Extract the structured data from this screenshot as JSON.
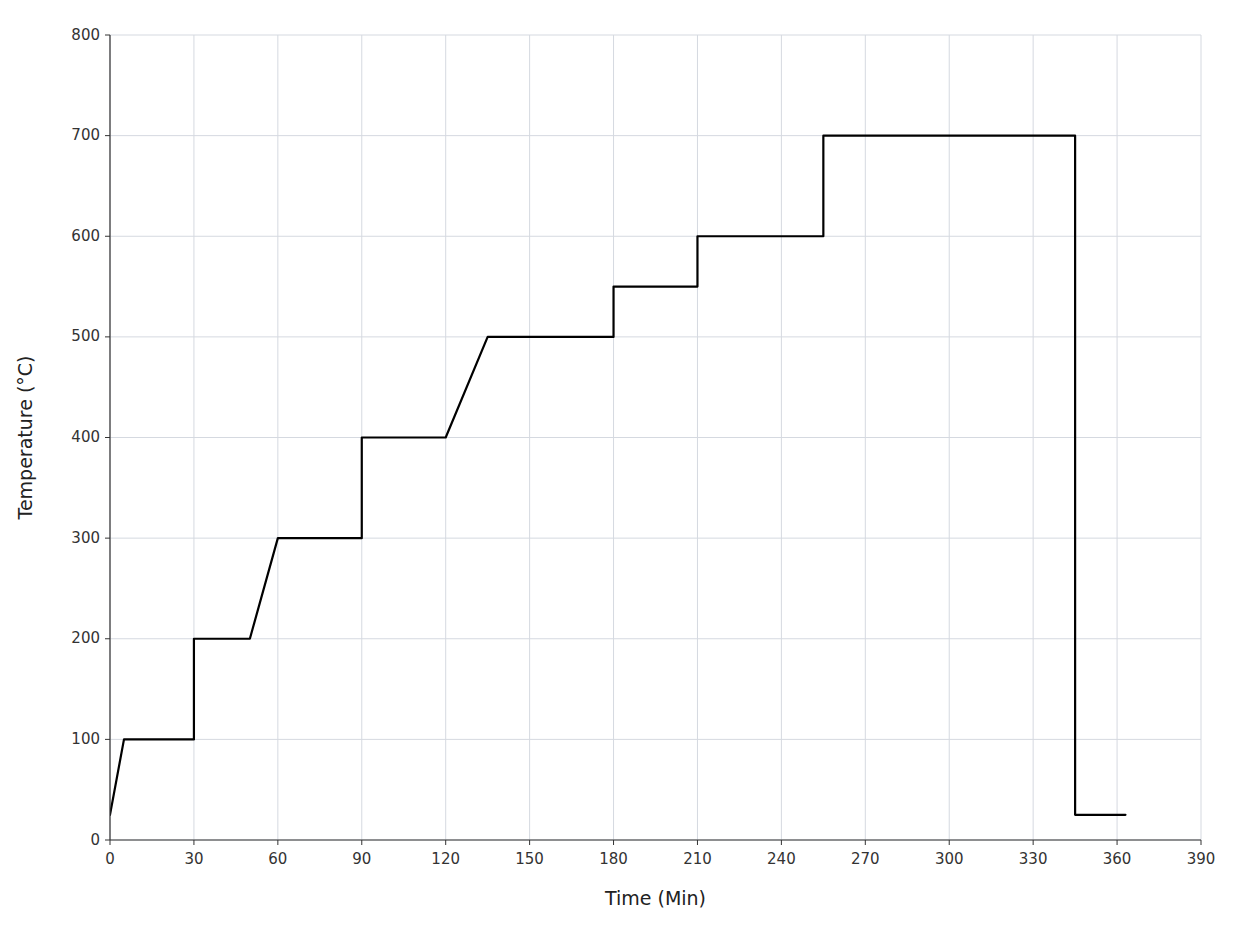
{
  "chart_data": {
    "type": "line",
    "xlabel": "Time (Min)",
    "ylabel": "Temperature (°C)",
    "x": [
      0,
      5,
      5,
      30,
      30,
      50,
      50,
      60,
      60,
      75,
      75,
      90,
      90,
      120,
      120,
      135,
      135,
      150,
      150,
      180,
      180,
      195,
      195,
      210,
      210,
      240,
      240,
      255,
      255,
      270,
      270,
      300,
      300,
      315,
      315,
      345,
      345,
      350,
      350,
      363
    ],
    "values": [
      25,
      100,
      100,
      100,
      200,
      200,
      200,
      300,
      300,
      300,
      300,
      300,
      400,
      400,
      400,
      500,
      500,
      500,
      500,
      500,
      550,
      550,
      550,
      550,
      600,
      600,
      600,
      600,
      700,
      700,
      700,
      700,
      700,
      700,
      700,
      700,
      25,
      25,
      25,
      25
    ],
    "color": "#000000",
    "xlim": [
      0,
      390
    ],
    "ylim": [
      0,
      800
    ],
    "xticks": [
      0,
      30,
      60,
      90,
      120,
      150,
      180,
      210,
      240,
      270,
      300,
      330,
      360,
      390
    ],
    "yticks": [
      0,
      100,
      200,
      300,
      400,
      500,
      600,
      700,
      800
    ],
    "grid": true
  }
}
